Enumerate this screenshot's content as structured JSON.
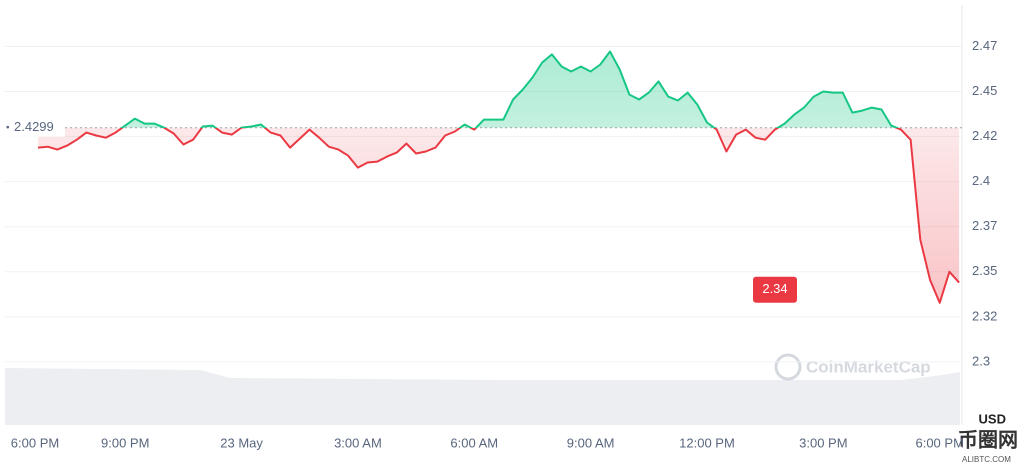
{
  "chart_data": {
    "type": "line",
    "series": [
      {
        "name": "Price",
        "color_up": "#16c784",
        "color_down": "#ea3943",
        "values": [
          2.4189,
          2.4194,
          2.4178,
          2.42,
          2.4233,
          2.4272,
          2.4256,
          2.4244,
          2.4272,
          2.4311,
          2.435,
          2.4322,
          2.4322,
          2.43,
          2.4267,
          2.4206,
          2.4233,
          2.4306,
          2.4311,
          2.4272,
          2.4261,
          2.43,
          2.4306,
          2.4317,
          2.4272,
          2.4256,
          2.4189,
          2.4239,
          2.4289,
          2.4244,
          2.4194,
          2.4178,
          2.4144,
          2.4078,
          2.4106,
          2.4111,
          2.4139,
          2.4161,
          2.4211,
          2.4156,
          2.4167,
          2.4189,
          2.4256,
          2.4278,
          2.4317,
          2.4289,
          2.4344,
          2.4344,
          2.4344,
          2.4456,
          2.4511,
          2.4578,
          2.4661,
          2.4706,
          2.4639,
          2.4611,
          2.4639,
          2.4611,
          2.465,
          2.4722,
          2.4622,
          2.4483,
          2.4456,
          2.4494,
          2.4556,
          2.4472,
          2.445,
          2.4494,
          2.4428,
          2.4328,
          2.4289,
          2.4167,
          2.4261,
          2.4289,
          2.4244,
          2.4233,
          2.4289,
          2.4322,
          2.4372,
          2.4411,
          2.4472,
          2.45,
          2.4494,
          2.4494,
          2.4383,
          2.4394,
          2.4411,
          2.44,
          2.4311,
          2.4289,
          2.4233,
          2.3678,
          2.3456,
          2.3328,
          2.35,
          2.344
        ]
      }
    ],
    "baseline": 2.4299,
    "current_price": 2.34,
    "xlim": [
      -3.4,
      95.3
    ],
    "xticks": [
      {
        "value": -3,
        "label": "6:00 PM"
      },
      {
        "value": 9,
        "label": "9:00 PM"
      },
      {
        "value": 21,
        "label": "23 May"
      },
      {
        "value": 33,
        "label": "3:00 AM"
      },
      {
        "value": 45,
        "label": "6:00 AM"
      },
      {
        "value": 57,
        "label": "9:00 AM"
      },
      {
        "value": 69,
        "label": "12:00 PM"
      },
      {
        "value": 81,
        "label": "3:00 PM"
      },
      {
        "value": 93,
        "label": "6:00 PM"
      }
    ],
    "ylim": [
      2.265,
      2.498
    ],
    "yticks": [
      2.3,
      {
        "value": 2.325,
        "label": "2.32"
      },
      2.35,
      {
        "value": 2.375,
        "label": "2.37"
      },
      2.4,
      {
        "value": 2.425,
        "label": "2.42"
      },
      2.45,
      {
        "value": 2.475,
        "label": "2.47"
      }
    ],
    "y_unit": "USD",
    "grid": true,
    "watermark": "CoinMarketCap",
    "site_watermark": "币圈网",
    "site_url": "ALIBTC.COM"
  }
}
